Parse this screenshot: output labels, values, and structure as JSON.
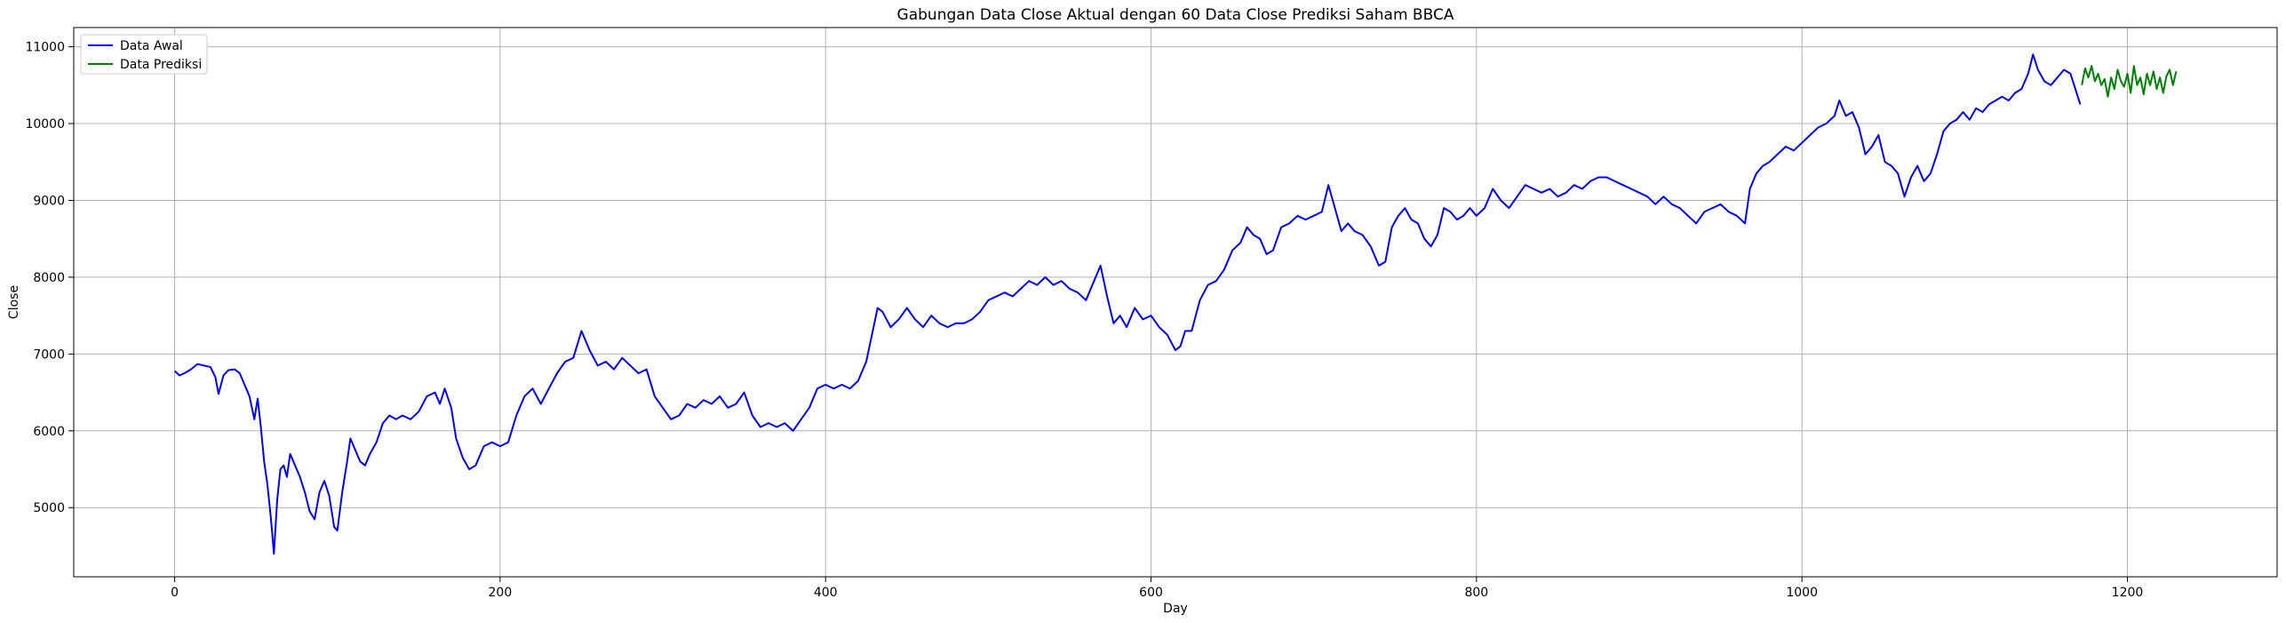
{
  "chart_data": {
    "type": "line",
    "title": "Gabungan Data Close Aktual dengan 60 Data Close Prediksi Saham BBCA",
    "xlabel": "Day",
    "ylabel": "Close",
    "xlim": [
      -62,
      1292
    ],
    "ylim": [
      4100,
      11250
    ],
    "xticks": [
      0,
      200,
      400,
      600,
      800,
      1000,
      1200
    ],
    "yticks": [
      5000,
      6000,
      7000,
      8000,
      9000,
      10000,
      11000
    ],
    "grid": true,
    "legend_position": "top-left",
    "series": [
      {
        "name": "Data Awal",
        "color": "#0000ff",
        "points": [
          [
            0,
            6780
          ],
          [
            3,
            6720
          ],
          [
            6,
            6750
          ],
          [
            10,
            6800
          ],
          [
            14,
            6870
          ],
          [
            18,
            6850
          ],
          [
            22,
            6830
          ],
          [
            25,
            6700
          ],
          [
            27,
            6480
          ],
          [
            30,
            6720
          ],
          [
            33,
            6790
          ],
          [
            37,
            6800
          ],
          [
            40,
            6750
          ],
          [
            43,
            6600
          ],
          [
            46,
            6450
          ],
          [
            49,
            6150
          ],
          [
            51,
            6420
          ],
          [
            53,
            6050
          ],
          [
            55,
            5600
          ],
          [
            57,
            5300
          ],
          [
            59,
            4900
          ],
          [
            60,
            4650
          ],
          [
            61,
            4400
          ],
          [
            63,
            5100
          ],
          [
            65,
            5500
          ],
          [
            67,
            5550
          ],
          [
            69,
            5400
          ],
          [
            71,
            5700
          ],
          [
            74,
            5550
          ],
          [
            77,
            5400
          ],
          [
            80,
            5200
          ],
          [
            83,
            4950
          ],
          [
            86,
            4850
          ],
          [
            89,
            5200
          ],
          [
            92,
            5350
          ],
          [
            95,
            5150
          ],
          [
            98,
            4750
          ],
          [
            100,
            4700
          ],
          [
            103,
            5200
          ],
          [
            106,
            5600
          ],
          [
            108,
            5900
          ],
          [
            111,
            5750
          ],
          [
            114,
            5600
          ],
          [
            117,
            5550
          ],
          [
            120,
            5700
          ],
          [
            124,
            5850
          ],
          [
            128,
            6100
          ],
          [
            132,
            6200
          ],
          [
            136,
            6150
          ],
          [
            140,
            6200
          ],
          [
            145,
            6150
          ],
          [
            150,
            6250
          ],
          [
            155,
            6450
          ],
          [
            160,
            6500
          ],
          [
            163,
            6350
          ],
          [
            166,
            6550
          ],
          [
            170,
            6300
          ],
          [
            173,
            5900
          ],
          [
            177,
            5650
          ],
          [
            181,
            5500
          ],
          [
            185,
            5550
          ],
          [
            190,
            5800
          ],
          [
            195,
            5850
          ],
          [
            200,
            5800
          ],
          [
            205,
            5850
          ],
          [
            210,
            6200
          ],
          [
            215,
            6450
          ],
          [
            220,
            6550
          ],
          [
            225,
            6350
          ],
          [
            230,
            6550
          ],
          [
            235,
            6750
          ],
          [
            240,
            6900
          ],
          [
            245,
            6950
          ],
          [
            250,
            7300
          ],
          [
            255,
            7050
          ],
          [
            260,
            6850
          ],
          [
            265,
            6900
          ],
          [
            270,
            6800
          ],
          [
            275,
            6950
          ],
          [
            280,
            6850
          ],
          [
            285,
            6750
          ],
          [
            290,
            6800
          ],
          [
            295,
            6450
          ],
          [
            300,
            6300
          ],
          [
            305,
            6150
          ],
          [
            310,
            6200
          ],
          [
            315,
            6350
          ],
          [
            320,
            6300
          ],
          [
            325,
            6400
          ],
          [
            330,
            6350
          ],
          [
            335,
            6450
          ],
          [
            340,
            6300
          ],
          [
            345,
            6350
          ],
          [
            350,
            6500
          ],
          [
            355,
            6200
          ],
          [
            360,
            6050
          ],
          [
            365,
            6100
          ],
          [
            370,
            6050
          ],
          [
            375,
            6100
          ],
          [
            380,
            6000
          ],
          [
            385,
            6150
          ],
          [
            390,
            6300
          ],
          [
            395,
            6550
          ],
          [
            400,
            6600
          ],
          [
            405,
            6550
          ],
          [
            410,
            6600
          ],
          [
            415,
            6550
          ],
          [
            420,
            6650
          ],
          [
            425,
            6900
          ],
          [
            428,
            7200
          ],
          [
            432,
            7600
          ],
          [
            435,
            7550
          ],
          [
            440,
            7350
          ],
          [
            445,
            7450
          ],
          [
            450,
            7600
          ],
          [
            455,
            7450
          ],
          [
            460,
            7350
          ],
          [
            465,
            7500
          ],
          [
            470,
            7400
          ],
          [
            475,
            7350
          ],
          [
            480,
            7400
          ],
          [
            485,
            7400
          ],
          [
            490,
            7450
          ],
          [
            495,
            7550
          ],
          [
            500,
            7700
          ],
          [
            505,
            7750
          ],
          [
            510,
            7800
          ],
          [
            515,
            7750
          ],
          [
            520,
            7850
          ],
          [
            525,
            7950
          ],
          [
            530,
            7900
          ],
          [
            535,
            8000
          ],
          [
            540,
            7900
          ],
          [
            545,
            7950
          ],
          [
            550,
            7850
          ],
          [
            555,
            7800
          ],
          [
            560,
            7700
          ],
          [
            565,
            7950
          ],
          [
            569,
            8150
          ],
          [
            573,
            7750
          ],
          [
            577,
            7400
          ],
          [
            581,
            7500
          ],
          [
            585,
            7350
          ],
          [
            590,
            7600
          ],
          [
            595,
            7450
          ],
          [
            600,
            7500
          ],
          [
            605,
            7350
          ],
          [
            610,
            7250
          ],
          [
            615,
            7050
          ],
          [
            618,
            7100
          ],
          [
            621,
            7300
          ],
          [
            625,
            7300
          ],
          [
            630,
            7700
          ],
          [
            635,
            7900
          ],
          [
            640,
            7950
          ],
          [
            645,
            8100
          ],
          [
            650,
            8350
          ],
          [
            655,
            8450
          ],
          [
            659,
            8650
          ],
          [
            663,
            8550
          ],
          [
            667,
            8500
          ],
          [
            671,
            8300
          ],
          [
            675,
            8350
          ],
          [
            680,
            8650
          ],
          [
            685,
            8700
          ],
          [
            690,
            8800
          ],
          [
            695,
            8750
          ],
          [
            700,
            8800
          ],
          [
            705,
            8850
          ],
          [
            709,
            9200
          ],
          [
            713,
            8900
          ],
          [
            717,
            8600
          ],
          [
            721,
            8700
          ],
          [
            725,
            8600
          ],
          [
            730,
            8550
          ],
          [
            735,
            8400
          ],
          [
            740,
            8150
          ],
          [
            744,
            8200
          ],
          [
            748,
            8650
          ],
          [
            752,
            8800
          ],
          [
            756,
            8900
          ],
          [
            760,
            8750
          ],
          [
            764,
            8700
          ],
          [
            768,
            8500
          ],
          [
            772,
            8400
          ],
          [
            776,
            8550
          ],
          [
            780,
            8900
          ],
          [
            784,
            8850
          ],
          [
            788,
            8750
          ],
          [
            792,
            8800
          ],
          [
            796,
            8900
          ],
          [
            800,
            8800
          ],
          [
            805,
            8900
          ],
          [
            810,
            9150
          ],
          [
            815,
            9000
          ],
          [
            820,
            8900
          ],
          [
            825,
            9050
          ],
          [
            830,
            9200
          ],
          [
            835,
            9150
          ],
          [
            840,
            9100
          ],
          [
            845,
            9150
          ],
          [
            850,
            9050
          ],
          [
            855,
            9100
          ],
          [
            860,
            9200
          ],
          [
            865,
            9150
          ],
          [
            870,
            9250
          ],
          [
            875,
            9300
          ],
          [
            880,
            9300
          ],
          [
            885,
            9250
          ],
          [
            890,
            9200
          ],
          [
            895,
            9150
          ],
          [
            900,
            9100
          ],
          [
            905,
            9050
          ],
          [
            910,
            8950
          ],
          [
            915,
            9050
          ],
          [
            920,
            8950
          ],
          [
            925,
            8900
          ],
          [
            930,
            8800
          ],
          [
            935,
            8700
          ],
          [
            940,
            8850
          ],
          [
            945,
            8900
          ],
          [
            950,
            8950
          ],
          [
            955,
            8850
          ],
          [
            960,
            8800
          ],
          [
            965,
            8700
          ],
          [
            968,
            9150
          ],
          [
            972,
            9350
          ],
          [
            976,
            9450
          ],
          [
            980,
            9500
          ],
          [
            985,
            9600
          ],
          [
            990,
            9700
          ],
          [
            995,
            9650
          ],
          [
            1000,
            9750
          ],
          [
            1005,
            9850
          ],
          [
            1010,
            9950
          ],
          [
            1015,
            10000
          ],
          [
            1020,
            10100
          ],
          [
            1023,
            10300
          ],
          [
            1027,
            10100
          ],
          [
            1031,
            10150
          ],
          [
            1035,
            9950
          ],
          [
            1039,
            9600
          ],
          [
            1043,
            9700
          ],
          [
            1047,
            9850
          ],
          [
            1051,
            9500
          ],
          [
            1055,
            9450
          ],
          [
            1059,
            9350
          ],
          [
            1063,
            9050
          ],
          [
            1067,
            9300
          ],
          [
            1071,
            9450
          ],
          [
            1075,
            9250
          ],
          [
            1079,
            9350
          ],
          [
            1083,
            9600
          ],
          [
            1087,
            9900
          ],
          [
            1091,
            10000
          ],
          [
            1095,
            10050
          ],
          [
            1099,
            10150
          ],
          [
            1103,
            10050
          ],
          [
            1107,
            10200
          ],
          [
            1111,
            10150
          ],
          [
            1115,
            10250
          ],
          [
            1119,
            10300
          ],
          [
            1123,
            10350
          ],
          [
            1127,
            10300
          ],
          [
            1131,
            10400
          ],
          [
            1135,
            10450
          ],
          [
            1139,
            10650
          ],
          [
            1142,
            10900
          ],
          [
            1145,
            10700
          ],
          [
            1149,
            10550
          ],
          [
            1153,
            10500
          ],
          [
            1157,
            10600
          ],
          [
            1161,
            10700
          ],
          [
            1165,
            10650
          ],
          [
            1168,
            10450
          ],
          [
            1171,
            10250
          ]
        ]
      },
      {
        "name": "Data Prediksi",
        "color": "#008000",
        "points": [
          [
            1172,
            10500
          ],
          [
            1174,
            10720
          ],
          [
            1176,
            10600
          ],
          [
            1178,
            10750
          ],
          [
            1180,
            10550
          ],
          [
            1182,
            10650
          ],
          [
            1184,
            10500
          ],
          [
            1186,
            10580
          ],
          [
            1188,
            10350
          ],
          [
            1190,
            10600
          ],
          [
            1192,
            10450
          ],
          [
            1194,
            10700
          ],
          [
            1196,
            10550
          ],
          [
            1198,
            10480
          ],
          [
            1200,
            10650
          ],
          [
            1202,
            10400
          ],
          [
            1204,
            10750
          ],
          [
            1206,
            10500
          ],
          [
            1208,
            10600
          ],
          [
            1210,
            10380
          ],
          [
            1212,
            10650
          ],
          [
            1214,
            10500
          ],
          [
            1216,
            10680
          ],
          [
            1218,
            10450
          ],
          [
            1220,
            10600
          ],
          [
            1222,
            10400
          ],
          [
            1224,
            10620
          ],
          [
            1226,
            10700
          ],
          [
            1228,
            10500
          ],
          [
            1230,
            10680
          ]
        ]
      }
    ]
  }
}
